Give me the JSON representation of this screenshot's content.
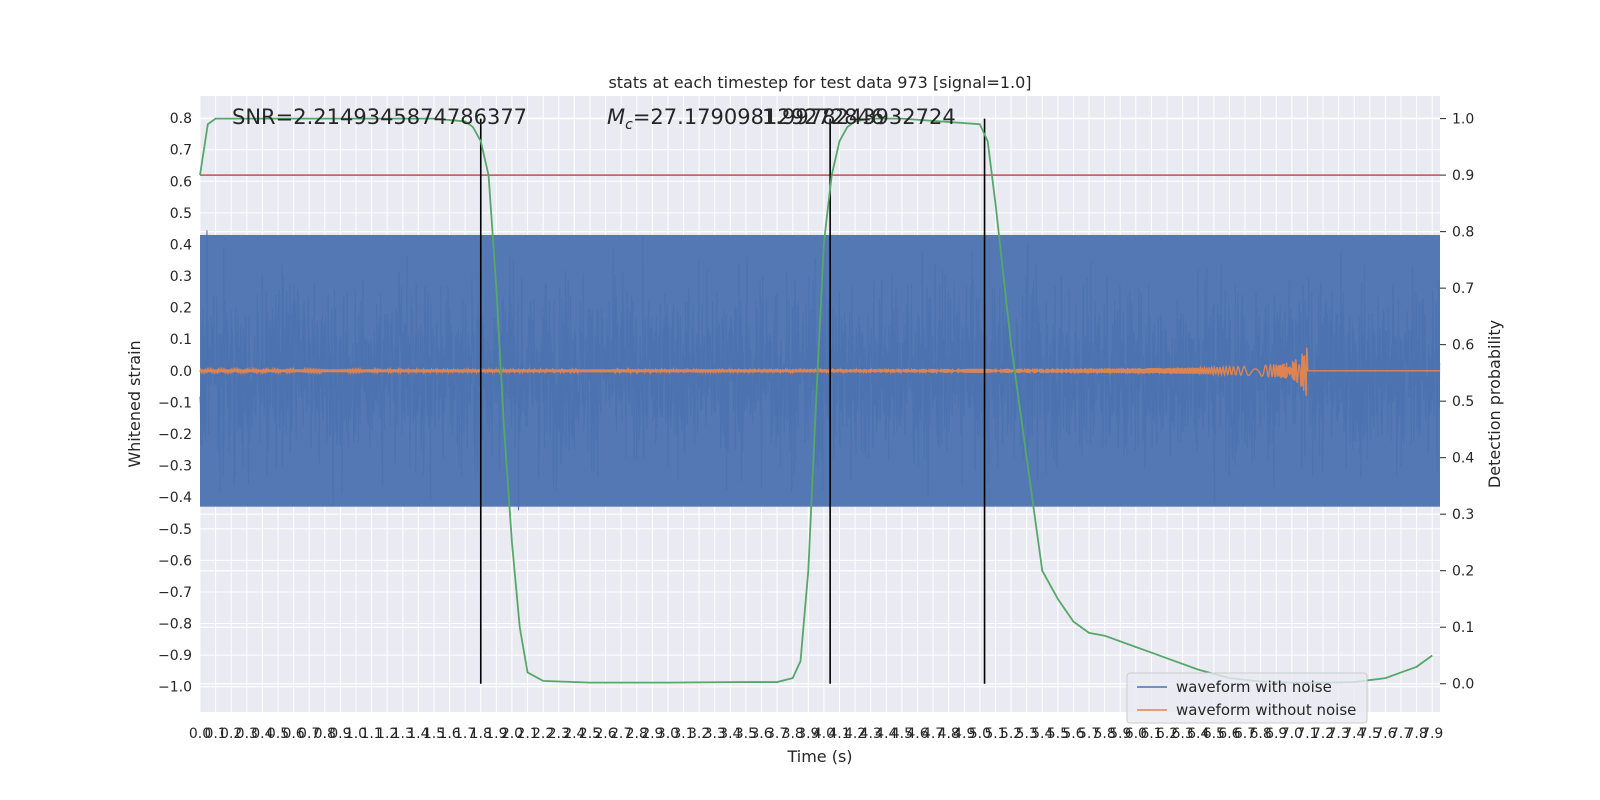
{
  "chart_data": {
    "type": "line",
    "title": "stats at each timestep for test data 973 [signal=1.0]",
    "xlabel": "Time (s)",
    "ylabel_left": "Whitened strain",
    "ylabel_right": "Detection probability",
    "xlim": [
      0.0,
      7.95
    ],
    "ylim_left": [
      -1.08,
      0.87
    ],
    "ylim_right": [
      -0.05,
      1.04
    ],
    "x_ticks": [
      "0.0",
      "0.1",
      "0.2",
      "0.3",
      "0.4",
      "0.5",
      "0.6",
      "0.7",
      "0.8",
      "0.9",
      "1.0",
      "1.1",
      "1.2",
      "1.3",
      "1.4",
      "1.5",
      "1.6",
      "1.7",
      "1.8",
      "1.9",
      "2.0",
      "2.1",
      "2.2",
      "2.3",
      "2.4",
      "2.5",
      "2.6",
      "2.7",
      "2.8",
      "2.9",
      "3.0",
      "3.1",
      "3.2",
      "3.3",
      "3.4",
      "3.5",
      "3.6",
      "3.7",
      "3.8",
      "3.9",
      "4.0",
      "4.1",
      "4.2",
      "4.3",
      "4.4",
      "4.5",
      "4.6",
      "4.7",
      "4.8",
      "4.9",
      "5.0",
      "5.1",
      "5.2",
      "5.3",
      "5.4",
      "5.5",
      "5.6",
      "5.7",
      "5.8",
      "5.9",
      "6.0",
      "6.1",
      "6.2",
      "6.3",
      "6.4",
      "6.5",
      "6.6",
      "6.7",
      "6.8",
      "6.9",
      "7.0",
      "7.1",
      "7.2",
      "7.3",
      "7.4",
      "7.5",
      "7.6",
      "7.7",
      "7.8",
      "7.9"
    ],
    "y_ticks_left": [
      "0.8",
      "0.7",
      "0.6",
      "0.5",
      "0.4",
      "0.3",
      "0.2",
      "0.1",
      "0.0",
      "−0.1",
      "−0.2",
      "−0.3",
      "−0.4",
      "−0.5",
      "−0.6",
      "−0.7",
      "−0.8",
      "−0.9",
      "−1.0"
    ],
    "y_ticks_right": [
      "1.0",
      "0.9",
      "0.8",
      "0.7",
      "0.6",
      "0.5",
      "0.4",
      "0.3",
      "0.2",
      "0.1",
      "0.0"
    ],
    "annotations": {
      "snr": "SNR=2.2149345874786377",
      "mc_symbol": "M",
      "mc_sub": "c",
      "mc_value": "=27.179098129272846",
      "overlap": "1.9978243932724"
    },
    "threshold_right": 0.9,
    "vlines_x": [
      1.8,
      4.04,
      5.03
    ],
    "signal_end_x": 7.1,
    "noise_envelope_left": 0.43,
    "series": [
      {
        "name": "waveform with noise",
        "color": "#4c72b0",
        "kind": "noise"
      },
      {
        "name": "waveform without noise",
        "color": "#dd8452",
        "kind": "chirp"
      }
    ],
    "detection_probability": {
      "color": "#55a868",
      "x": [
        0.0,
        0.05,
        0.1,
        0.2,
        0.5,
        1.0,
        1.5,
        1.7,
        1.75,
        1.8,
        1.85,
        1.9,
        1.95,
        2.0,
        2.05,
        2.1,
        2.2,
        2.5,
        3.0,
        3.5,
        3.7,
        3.8,
        3.85,
        3.9,
        3.95,
        4.0,
        4.05,
        4.1,
        4.15,
        4.2,
        4.3,
        4.5,
        5.0,
        5.05,
        5.1,
        5.2,
        5.3,
        5.4,
        5.5,
        5.6,
        5.7,
        5.8,
        6.0,
        6.2,
        6.4,
        6.6,
        6.8,
        7.0,
        7.2,
        7.4,
        7.6,
        7.7,
        7.8,
        7.9
      ],
      "y": [
        0.9,
        0.99,
        1.0,
        1.0,
        1.0,
        1.0,
        1.0,
        0.995,
        0.985,
        0.96,
        0.9,
        0.7,
        0.45,
        0.25,
        0.1,
        0.02,
        0.005,
        0.002,
        0.002,
        0.003,
        0.003,
        0.01,
        0.04,
        0.2,
        0.5,
        0.78,
        0.9,
        0.96,
        0.985,
        0.995,
        1.0,
        1.0,
        0.99,
        0.96,
        0.85,
        0.6,
        0.4,
        0.2,
        0.15,
        0.11,
        0.09,
        0.085,
        0.065,
        0.045,
        0.025,
        0.01,
        0.004,
        0.002,
        0.002,
        0.003,
        0.01,
        0.02,
        0.03,
        0.05
      ]
    }
  }
}
